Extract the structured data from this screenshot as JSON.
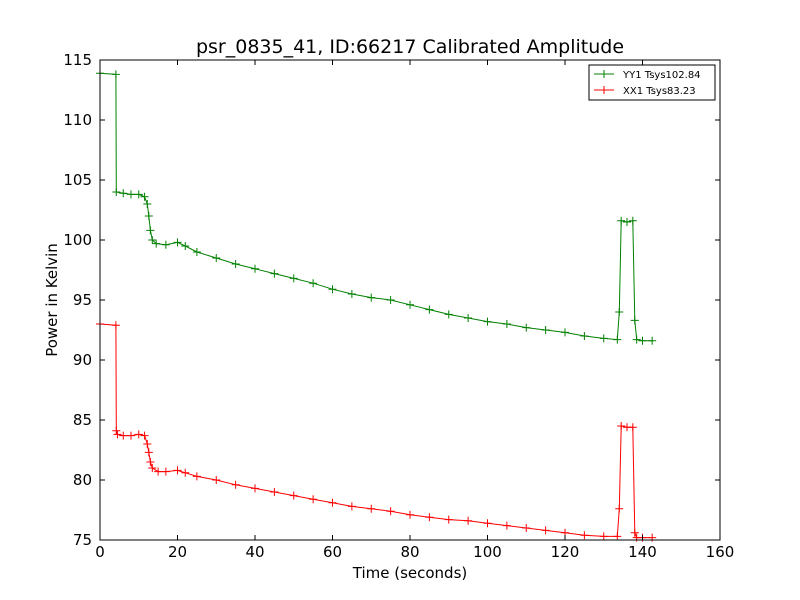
{
  "chart_data": {
    "type": "line",
    "title": "psr_0835_41, ID:66217 Calibrated Amplitude",
    "xlabel": "Time (seconds)",
    "ylabel": "Power in Kelvin",
    "xlim": [
      0,
      160
    ],
    "ylim": [
      75,
      115
    ],
    "xticks": [
      "0",
      "20",
      "40",
      "60",
      "80",
      "100",
      "120",
      "140",
      "160"
    ],
    "yticks": [
      "75",
      "80",
      "85",
      "90",
      "95",
      "100",
      "105",
      "110",
      "115"
    ],
    "grid": false,
    "legend_position": "top-right",
    "marker": "+",
    "series": [
      {
        "name": "YY1 Tsys102.84",
        "color": "#008000",
        "points": [
          [
            0,
            113.9
          ],
          [
            4.1,
            113.8
          ],
          [
            4.2,
            104.0
          ],
          [
            6,
            103.9
          ],
          [
            8,
            103.8
          ],
          [
            10,
            103.8
          ],
          [
            11.5,
            103.6
          ],
          [
            12.2,
            103.0
          ],
          [
            12.6,
            102.0
          ],
          [
            13.0,
            100.8
          ],
          [
            13.5,
            100.0
          ],
          [
            14.5,
            99.7
          ],
          [
            17,
            99.6
          ],
          [
            20,
            99.8
          ],
          [
            22,
            99.5
          ],
          [
            25,
            99.0
          ],
          [
            30,
            98.5
          ],
          [
            35,
            98.0
          ],
          [
            40,
            97.6
          ],
          [
            45,
            97.2
          ],
          [
            50,
            96.8
          ],
          [
            55,
            96.4
          ],
          [
            60,
            95.9
          ],
          [
            65,
            95.5
          ],
          [
            70,
            95.2
          ],
          [
            75,
            95.0
          ],
          [
            80,
            94.6
          ],
          [
            85,
            94.2
          ],
          [
            90,
            93.8
          ],
          [
            95,
            93.5
          ],
          [
            100,
            93.2
          ],
          [
            105,
            93.0
          ],
          [
            110,
            92.7
          ],
          [
            115,
            92.5
          ],
          [
            120,
            92.3
          ],
          [
            125,
            92.0
          ],
          [
            130,
            91.8
          ],
          [
            133.5,
            91.7
          ],
          [
            134.0,
            94.0
          ],
          [
            134.5,
            101.6
          ],
          [
            136,
            101.5
          ],
          [
            137.5,
            101.6
          ],
          [
            138.0,
            93.3
          ],
          [
            138.5,
            91.7
          ],
          [
            140,
            91.6
          ],
          [
            142.5,
            91.6
          ]
        ]
      },
      {
        "name": "XX1 Tsys83.23",
        "color": "#ff0000",
        "points": [
          [
            0,
            93.0
          ],
          [
            4.1,
            92.9
          ],
          [
            4.2,
            84.1
          ],
          [
            4.5,
            83.8
          ],
          [
            6,
            83.7
          ],
          [
            8,
            83.7
          ],
          [
            10,
            83.8
          ],
          [
            11.5,
            83.7
          ],
          [
            12.2,
            83.0
          ],
          [
            12.6,
            82.3
          ],
          [
            13.0,
            81.5
          ],
          [
            13.5,
            81.0
          ],
          [
            15,
            80.7
          ],
          [
            17,
            80.7
          ],
          [
            20,
            80.8
          ],
          [
            22,
            80.6
          ],
          [
            25,
            80.3
          ],
          [
            30,
            80.0
          ],
          [
            35,
            79.6
          ],
          [
            40,
            79.3
          ],
          [
            45,
            79.0
          ],
          [
            50,
            78.7
          ],
          [
            55,
            78.4
          ],
          [
            60,
            78.1
          ],
          [
            65,
            77.8
          ],
          [
            70,
            77.6
          ],
          [
            75,
            77.4
          ],
          [
            80,
            77.1
          ],
          [
            85,
            76.9
          ],
          [
            90,
            76.7
          ],
          [
            95,
            76.6
          ],
          [
            100,
            76.4
          ],
          [
            105,
            76.2
          ],
          [
            110,
            76.0
          ],
          [
            115,
            75.8
          ],
          [
            120,
            75.6
          ],
          [
            125,
            75.4
          ],
          [
            130,
            75.3
          ],
          [
            133.5,
            75.3
          ],
          [
            134.0,
            77.6
          ],
          [
            134.5,
            84.5
          ],
          [
            136,
            84.4
          ],
          [
            137.5,
            84.4
          ],
          [
            138.0,
            75.6
          ],
          [
            138.5,
            75.2
          ],
          [
            140,
            75.2
          ],
          [
            142.5,
            75.2
          ]
        ]
      }
    ]
  }
}
